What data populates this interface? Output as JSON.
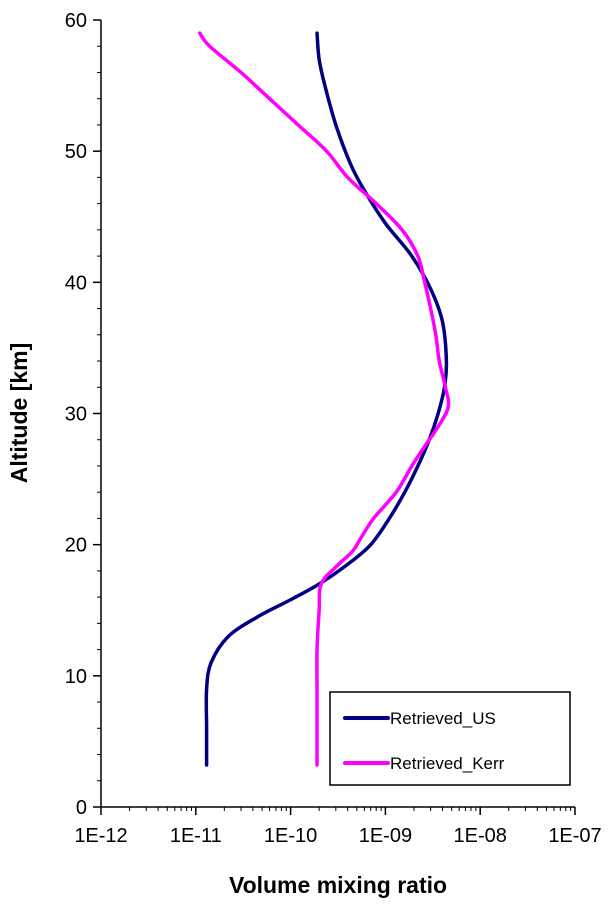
{
  "chart_data": {
    "type": "line",
    "title": "",
    "xlabel": "Volume mixing ratio",
    "ylabel": "Altitude [km]",
    "x_scale": "log",
    "xlim": [
      1e-12,
      1e-07
    ],
    "ylim": [
      0,
      60
    ],
    "x_tick_values": [
      1e-12,
      1e-11,
      1e-10,
      1e-09,
      1e-08,
      1e-07
    ],
    "x_tick_labels": [
      "1E-12",
      "1E-11",
      "1E-10",
      "1E-09",
      "1E-08",
      "1E-07"
    ],
    "y_tick_values": [
      0,
      10,
      20,
      30,
      40,
      50,
      60
    ],
    "y_tick_labels": [
      "0",
      "10",
      "20",
      "30",
      "40",
      "50",
      "60"
    ],
    "grid": false,
    "legend": {
      "position": "bottom-right"
    },
    "series": [
      {
        "name": "Retrieved_US",
        "color": "#000080",
        "points": [
          [
            1.3e-11,
            3.2
          ],
          [
            1.3e-11,
            6
          ],
          [
            1.3e-11,
            9
          ],
          [
            1.45e-11,
            11
          ],
          [
            2.2e-11,
            13
          ],
          [
            4.5e-11,
            14.5
          ],
          [
            1e-10,
            15.8
          ],
          [
            2e-10,
            17
          ],
          [
            4e-10,
            18.5
          ],
          [
            7e-10,
            20
          ],
          [
            1.1e-09,
            22
          ],
          [
            1.6e-09,
            24
          ],
          [
            2.2e-09,
            26
          ],
          [
            2.9e-09,
            28
          ],
          [
            3.6e-09,
            30
          ],
          [
            4.2e-09,
            32
          ],
          [
            4.4e-09,
            34
          ],
          [
            4e-09,
            37
          ],
          [
            3e-09,
            39.5
          ],
          [
            1.9e-09,
            42
          ],
          [
            1e-09,
            44.5
          ],
          [
            6e-10,
            47
          ],
          [
            4.3e-10,
            49
          ],
          [
            3e-10,
            52
          ],
          [
            2.3e-10,
            55
          ],
          [
            2e-10,
            57
          ],
          [
            1.9e-10,
            59
          ]
        ]
      },
      {
        "name": "Retrieved_Kerr",
        "color": "#ff00ff",
        "points": [
          [
            1.9e-10,
            3.2
          ],
          [
            1.9e-10,
            6
          ],
          [
            1.9e-10,
            9
          ],
          [
            1.9e-10,
            12
          ],
          [
            2e-10,
            15
          ],
          [
            2.1e-10,
            17
          ],
          [
            3e-10,
            18.3
          ],
          [
            4.5e-10,
            19.5
          ],
          [
            5.5e-10,
            20.5
          ],
          [
            7.5e-10,
            22
          ],
          [
            1.3e-09,
            24
          ],
          [
            1.9e-09,
            26
          ],
          [
            2.6e-09,
            27.5
          ],
          [
            3.6e-09,
            29
          ],
          [
            4.6e-09,
            30.5
          ],
          [
            4.3e-09,
            32
          ],
          [
            3.7e-09,
            34
          ],
          [
            3.4e-09,
            36
          ],
          [
            3e-09,
            38
          ],
          [
            2.6e-09,
            40
          ],
          [
            2.2e-09,
            42
          ],
          [
            1.5e-09,
            44
          ],
          [
            8e-10,
            46
          ],
          [
            4e-10,
            48
          ],
          [
            2.4e-10,
            50
          ],
          [
            1.2e-10,
            52
          ],
          [
            6e-11,
            54
          ],
          [
            3e-11,
            56
          ],
          [
            1.4e-11,
            58
          ],
          [
            1.1e-11,
            59
          ]
        ]
      }
    ]
  }
}
